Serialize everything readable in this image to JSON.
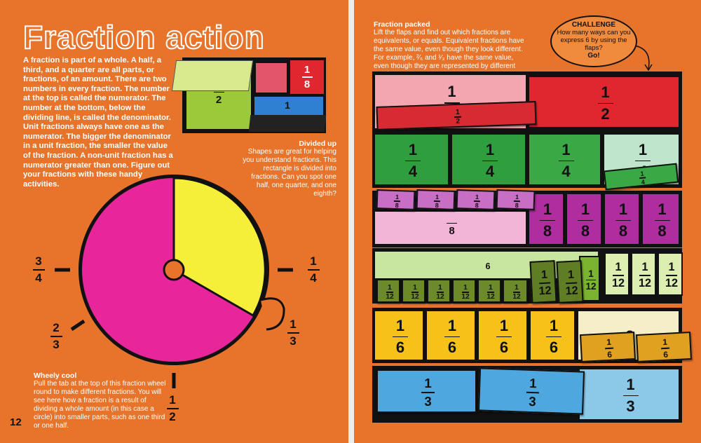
{
  "left_page": {
    "title": "Fraction action",
    "intro": "A fraction is part of a whole. A half, a third, and a quarter are all parts, or fractions, of an amount. There are two numbers in every fraction. The number at the top is called the numerator. The number at the bottom, below the dividing line, is called the denominator. Unit fractions always have one as the numerator. The bigger the denominator in a unit fraction, the smaller the value of the fraction. A non-unit fraction has a numerator greater than one. Figure out your fractions with these handy activities.",
    "rectangle": {
      "half": {
        "d": 2
      },
      "eighth": {
        "n": 1,
        "d": 8
      },
      "quarter": {
        "n": 1
      }
    },
    "divided_up": {
      "heading": "Divided up",
      "text": "Shapes are great for helping you understand fractions. This rectangle is divided into fractions. Can you spot one half, one quarter, and one eighth?"
    },
    "wheel_labels": [
      {
        "n": 3,
        "d": 4
      },
      {
        "n": 1,
        "d": 4
      },
      {
        "n": 2,
        "d": 3
      },
      {
        "n": 1,
        "d": 3
      },
      {
        "n": 1,
        "d": 2
      }
    ],
    "wheely_cool": {
      "heading": "Wheely cool",
      "text": "Pull the tab at the top of this fraction wheel round to make different fractions. You will see here how a fraction is a result of dividing a whole amount (in this case a circle) into smaller parts, such as one third or one half."
    },
    "page_number": "12"
  },
  "right_page": {
    "fraction_packed": {
      "heading": "Fraction packed",
      "text": "Lift the flaps and find out which fractions are equivalents, or equals. Equivalent fractions have the same value, even though they look different. For example, ²⁄₆ and ¹⁄₃ have the same value, even though they are represented by different numbers."
    },
    "challenge": {
      "heading": "CHALLENGE",
      "text": "How many ways can you express 6 by using the flaps?",
      "go": "Go!"
    },
    "rows": [
      {
        "cells": [
          {
            "n": 1,
            "d": 2
          },
          {
            "n": 1,
            "d": 2
          }
        ],
        "flaps": [
          {
            "n": 1,
            "d": 2
          }
        ]
      },
      {
        "cells": [
          {
            "n": 1,
            "d": 4
          },
          {
            "n": 1,
            "d": 4
          },
          {
            "n": 1,
            "d": 4
          },
          {
            "n": 1,
            "d": 4
          }
        ],
        "flaps": [
          {
            "n": 1,
            "d": 4
          }
        ]
      },
      {
        "cells": [
          {
            "d": 8
          },
          {
            "n": 1,
            "d": 8
          },
          {
            "n": 1,
            "d": 8
          },
          {
            "n": 1,
            "d": 8
          },
          {
            "n": 1,
            "d": 8
          }
        ],
        "flaps": [
          {
            "n": 1,
            "d": 8
          },
          {
            "n": 1,
            "d": 8
          },
          {
            "n": 1,
            "d": 8
          },
          {
            "n": 1,
            "d": 8
          }
        ]
      },
      {
        "cells": [
          {
            "n": 6
          },
          {
            "n": 1,
            "d": 12
          },
          {
            "n": 1,
            "d": 12
          },
          {
            "n": 1,
            "d": 12
          },
          {
            "n": 1,
            "d": 12
          }
        ],
        "flaps": [
          {
            "n": 1,
            "d": 12
          },
          {
            "n": 1,
            "d": 12
          },
          {
            "n": 1,
            "d": 12
          },
          {
            "n": 1,
            "d": 12
          },
          {
            "n": 1,
            "d": 12
          },
          {
            "n": 1,
            "d": 12
          },
          {
            "n": 1,
            "d": 12
          },
          {
            "n": 1,
            "d": 12
          }
        ]
      },
      {
        "cells": [
          {
            "n": 1,
            "d": 6
          },
          {
            "n": 1,
            "d": 6
          },
          {
            "n": 1,
            "d": 6
          },
          {
            "n": 1,
            "d": 6
          },
          {
            "n": 2
          }
        ],
        "flaps": [
          {
            "n": 1,
            "d": 6
          },
          {
            "n": 1,
            "d": 6
          }
        ]
      },
      {
        "cells": [
          {
            "n": 1,
            "d": 3
          }
        ],
        "flaps": [
          {
            "n": 1,
            "d": 3
          },
          {
            "n": 1,
            "d": 3
          }
        ]
      }
    ]
  }
}
